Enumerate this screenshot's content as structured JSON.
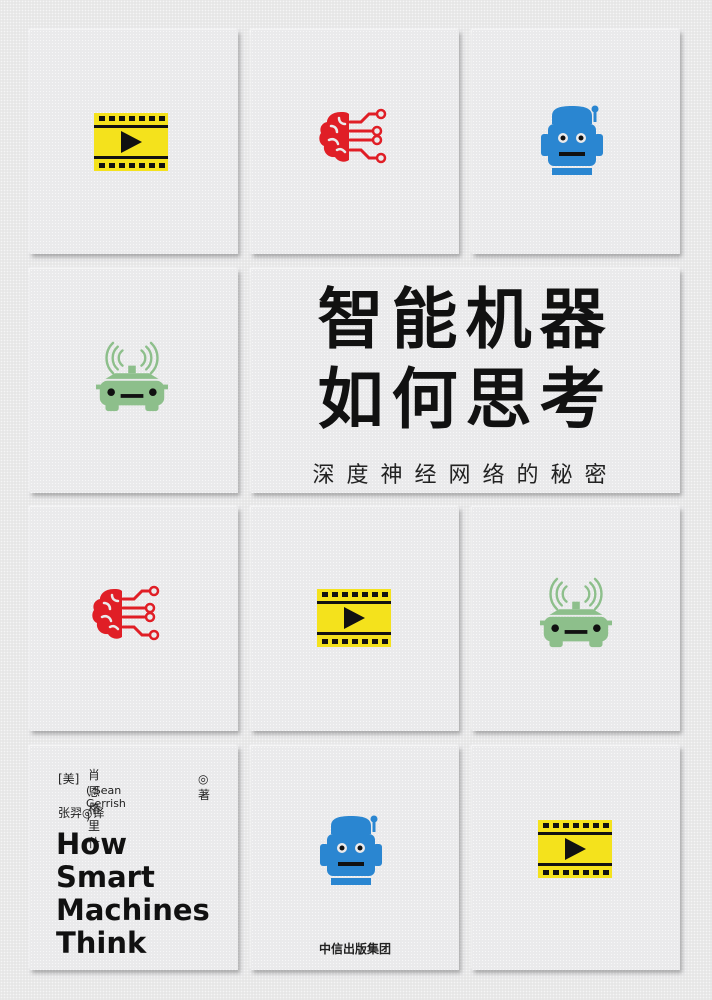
{
  "cover": {
    "title_line1": "智能机器",
    "title_line2": "如何思考",
    "subtitle": "深度神经网络的秘密",
    "author_country": "[美]",
    "author_name_cn": "肖恩·格里什",
    "author_name_en": "( Sean Gerrish )",
    "author_role": "◎著",
    "translator": "张羿◎译",
    "english_title_lines": [
      "How",
      "Smart",
      "Machines",
      "Think"
    ],
    "publisher": "中信出版集团"
  },
  "tiles": [
    {
      "row": 1,
      "col": 1,
      "icon": "film-strip-icon"
    },
    {
      "row": 1,
      "col": 2,
      "icon": "brain-circuit-icon"
    },
    {
      "row": 1,
      "col": 3,
      "icon": "robot-head-icon"
    },
    {
      "row": 2,
      "col": 1,
      "icon": "self-driving-car-icon"
    },
    {
      "row": 2,
      "col": 2,
      "icon": "title-block"
    },
    {
      "row": 3,
      "col": 1,
      "icon": "brain-circuit-icon"
    },
    {
      "row": 3,
      "col": 2,
      "icon": "film-strip-icon"
    },
    {
      "row": 3,
      "col": 3,
      "icon": "self-driving-car-icon"
    },
    {
      "row": 4,
      "col": 1,
      "icon": "author-block"
    },
    {
      "row": 4,
      "col": 2,
      "icon": "robot-head-icon"
    },
    {
      "row": 4,
      "col": 3,
      "icon": "film-strip-icon"
    }
  ],
  "colors": {
    "film_yellow": "#f4e21c",
    "brain_red": "#e01e26",
    "robot_blue": "#2a86d1",
    "car_green": "#8dbf8b",
    "ink": "#111111",
    "background": "#e9e9ea"
  }
}
